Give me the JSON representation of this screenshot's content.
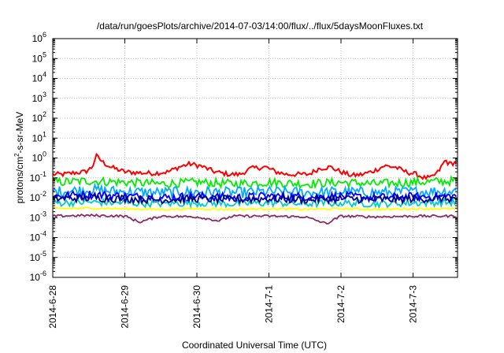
{
  "chart_data": {
    "type": "line",
    "title": "/data/run/goesPlots/archive/2014-07-03/14:00/flux/../flux/5daysMoonFluxes.txt",
    "xlabel": "Coordinated Universal Time (UTC)",
    "ylabel_pre": "protons/cm",
    "ylabel_sup": "2",
    "ylabel_post": "-s-sr-MeV",
    "yscale": "log",
    "ylim_exp": [
      -6,
      6
    ],
    "y_ticks": [
      {
        "base": "10",
        "exp": "-6"
      },
      {
        "base": "10",
        "exp": "-5"
      },
      {
        "base": "10",
        "exp": "-4"
      },
      {
        "base": "10",
        "exp": "-3"
      },
      {
        "base": "10",
        "exp": "-2"
      },
      {
        "base": "10",
        "exp": "-1"
      },
      {
        "base": "10",
        "exp": "0"
      },
      {
        "base": "10",
        "exp": "1"
      },
      {
        "base": "10",
        "exp": "2"
      },
      {
        "base": "10",
        "exp": "3"
      },
      {
        "base": "10",
        "exp": "4"
      },
      {
        "base": "10",
        "exp": "5"
      },
      {
        "base": "10",
        "exp": "6"
      }
    ],
    "x_ticks": [
      "2014-6-28",
      "2014-6-29",
      "2014-6-30",
      "2014-7-1",
      "2014-7-2",
      "2014-7-3"
    ],
    "xlim_days": [
      0,
      5.6
    ],
    "grid": true,
    "series": [
      {
        "color": "#ff0000",
        "x": [
          0,
          0.15,
          0.3,
          0.45,
          0.55,
          0.6,
          0.7,
          0.8,
          1.0,
          1.2,
          1.4,
          1.6,
          1.75,
          1.9,
          2.05,
          2.25,
          2.45,
          2.6,
          2.75,
          2.95,
          3.1,
          3.25,
          3.4,
          3.55,
          3.7,
          3.85,
          4.0,
          4.15,
          4.3,
          4.45,
          4.6,
          4.75,
          4.9,
          5.05,
          5.15,
          5.25,
          5.35,
          5.45,
          5.5,
          5.6
        ],
        "y": [
          0.15,
          0.15,
          0.18,
          0.2,
          0.35,
          1.3,
          0.6,
          0.35,
          0.2,
          0.18,
          0.17,
          0.2,
          0.35,
          0.5,
          0.4,
          0.2,
          0.15,
          0.15,
          0.3,
          0.35,
          0.2,
          0.15,
          0.15,
          0.15,
          0.3,
          0.35,
          0.2,
          0.13,
          0.15,
          0.22,
          0.4,
          0.35,
          0.2,
          0.15,
          0.1,
          0.1,
          0.2,
          0.8,
          0.5,
          0.6
        ]
      },
      {
        "color": "#00ee00",
        "x": [
          0,
          0.5,
          1.0,
          1.5,
          2.0,
          2.5,
          3.0,
          3.5,
          4.0,
          4.5,
          5.0,
          5.6
        ],
        "y": [
          0.06,
          0.07,
          0.06,
          0.05,
          0.06,
          0.05,
          0.06,
          0.05,
          0.06,
          0.05,
          0.06,
          0.07
        ]
      },
      {
        "color": "#00aaff",
        "x": [
          0,
          0.5,
          1.0,
          1.5,
          2.0,
          2.5,
          3.0,
          3.5,
          4.0,
          4.5,
          5.0,
          5.6
        ],
        "y": [
          0.02,
          0.025,
          0.02,
          0.018,
          0.02,
          0.018,
          0.02,
          0.018,
          0.02,
          0.018,
          0.02,
          0.022
        ]
      },
      {
        "color": "#0000ff",
        "x": [
          0,
          0.5,
          1.0,
          1.5,
          2.0,
          2.5,
          3.0,
          3.5,
          4.0,
          4.5,
          5.0,
          5.6
        ],
        "y": [
          0.012,
          0.015,
          0.012,
          0.01,
          0.012,
          0.01,
          0.012,
          0.011,
          0.012,
          0.01,
          0.011,
          0.012
        ]
      },
      {
        "color": "#00cccc",
        "x": [
          0,
          0.5,
          1.0,
          1.5,
          2.0,
          2.5,
          3.0,
          3.5,
          4.0,
          4.5,
          5.0,
          5.6
        ],
        "y": [
          0.0055,
          0.006,
          0.0055,
          0.005,
          0.0055,
          0.005,
          0.0055,
          0.005,
          0.0055,
          0.005,
          0.0055,
          0.006
        ]
      },
      {
        "color": "#000088",
        "x": [
          0,
          0.5,
          1.0,
          1.5,
          2.0,
          2.5,
          3.0,
          3.5,
          4.0,
          4.5,
          5.0,
          5.6
        ],
        "y": [
          0.009,
          0.01,
          0.009,
          0.008,
          0.009,
          0.008,
          0.009,
          0.008,
          0.009,
          0.008,
          0.009,
          0.009
        ]
      },
      {
        "color": "#ffff00",
        "x": [
          0,
          0.5,
          1.0,
          1.5,
          2.0,
          2.5,
          3.0,
          3.5,
          4.0,
          4.5,
          5.0,
          5.6
        ],
        "y": [
          0.0028,
          0.003,
          0.0028,
          0.0026,
          0.0028,
          0.0026,
          0.0028,
          0.0026,
          0.0028,
          0.0026,
          0.0028,
          0.0028
        ]
      },
      {
        "color": "#8b2a6b",
        "x": [
          0,
          0.5,
          1.0,
          1.2,
          1.5,
          2.0,
          2.3,
          2.5,
          3.0,
          3.5,
          3.8,
          4.0,
          4.5,
          5.0,
          5.6
        ],
        "y": [
          0.0012,
          0.0013,
          0.0012,
          0.0006,
          0.0012,
          0.0011,
          0.0007,
          0.0012,
          0.0012,
          0.0011,
          0.0005,
          0.0012,
          0.0011,
          0.0012,
          0.0012
        ]
      }
    ]
  }
}
